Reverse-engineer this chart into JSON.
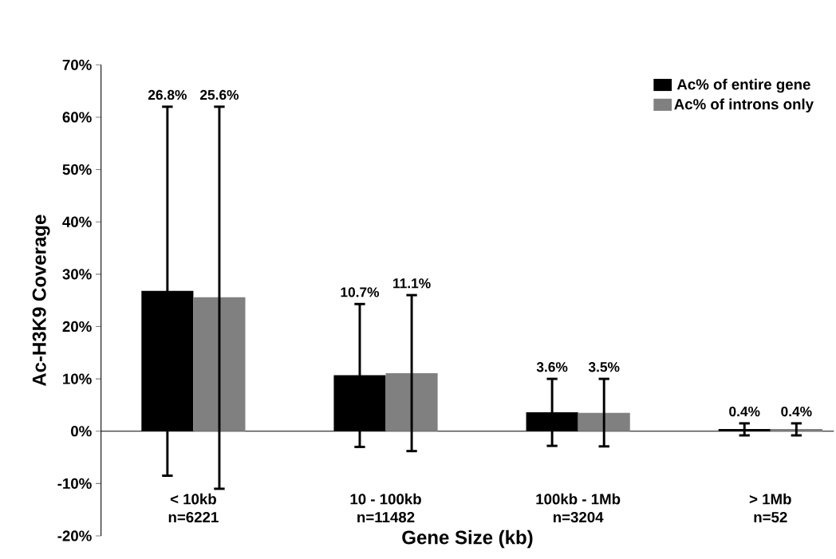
{
  "chart_data": {
    "type": "bar",
    "xlabel": "Gene Size (kb)",
    "ylabel": "Ac-H3K9 Coverage",
    "categories": [
      "< 10kb\nn=6221",
      "10 - 100kb\nn=11482",
      "100kb - 1Mb\nn=3204",
      "> 1Mb\nn=52"
    ],
    "series": [
      {
        "name": "Ac% of entire gene",
        "color": "#000000",
        "values": [
          26.8,
          10.7,
          3.6,
          0.4
        ],
        "errors": [
          [
            -8.5,
            62
          ],
          [
            -3,
            24.3
          ],
          [
            -2.8,
            10
          ],
          [
            -0.8,
            1.5
          ]
        ]
      },
      {
        "name": "Ac% of introns only",
        "color": "#808080",
        "values": [
          25.6,
          11.1,
          3.5,
          0.4
        ],
        "errors": [
          [
            -11,
            62
          ],
          [
            -3.8,
            26
          ],
          [
            -2.9,
            10
          ],
          [
            -0.8,
            1.5
          ]
        ]
      }
    ],
    "ylim": [
      -20,
      70
    ],
    "yticks": [
      {
        "value": -20,
        "label": "-20%"
      },
      {
        "value": -10,
        "label": "-10%"
      },
      {
        "value": 0,
        "label": "0%"
      },
      {
        "value": 10,
        "label": "10%"
      },
      {
        "value": 20,
        "label": "20%"
      },
      {
        "value": 30,
        "label": "30%"
      },
      {
        "value": 40,
        "label": "40%"
      },
      {
        "value": 50,
        "label": "50%"
      },
      {
        "value": 60,
        "label": "60%"
      },
      {
        "value": 70,
        "label": "70%"
      }
    ],
    "value_labels": [
      [
        "26.8%",
        "10.7%",
        "3.6%",
        "0.4%"
      ],
      [
        "25.6%",
        "11.1%",
        "3.5%",
        "0.4%"
      ]
    ],
    "legend": "top right"
  }
}
